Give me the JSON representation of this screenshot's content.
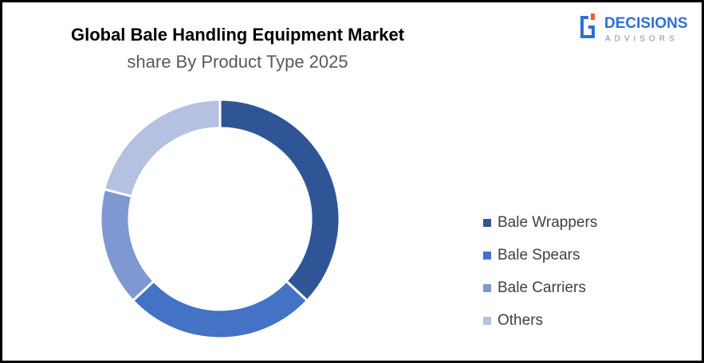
{
  "logo": {
    "name": "DECISIONS",
    "tagline": "ADVISORS"
  },
  "chart_data": {
    "type": "donut",
    "title": "Global Bale Handling Equipment Market",
    "subtitle": "share By Product Type 2025",
    "categories": [
      "Bale Wrappers",
      "Bale Spears",
      "Bale Carriers",
      "Others"
    ],
    "values": [
      37,
      26,
      16,
      21
    ],
    "colors": [
      "#2f5597",
      "#4472c4",
      "#7f98d2",
      "#b4c1e1"
    ],
    "legend": "right"
  }
}
